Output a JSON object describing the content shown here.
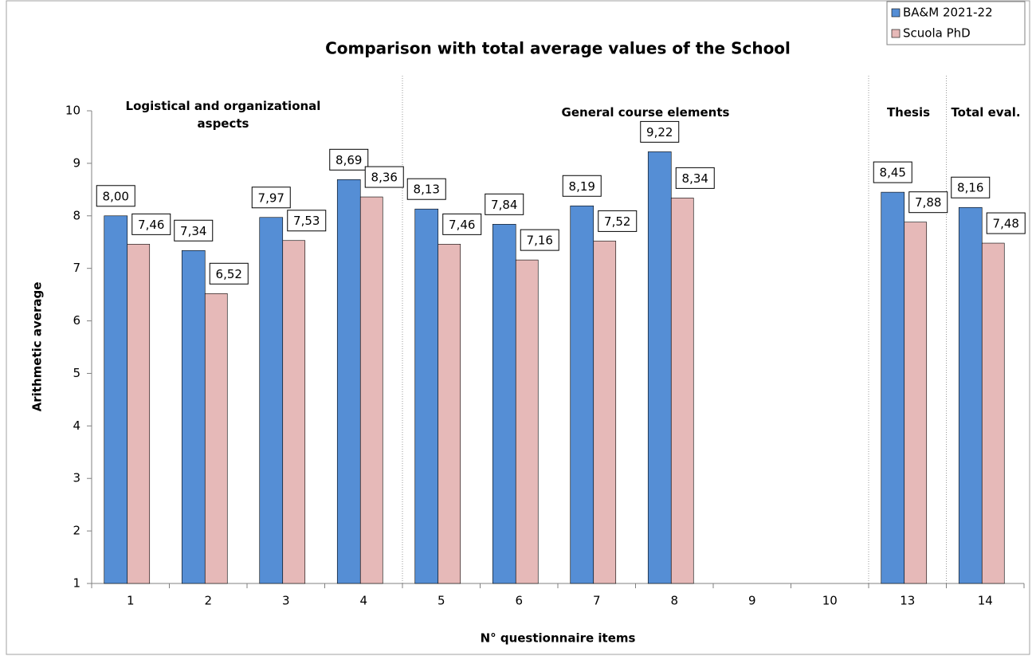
{
  "chart_data": {
    "type": "bar",
    "title": "Comparison with total average values of the School",
    "xlabel": "N° questionnaire items",
    "ylabel": "Arithmetic average",
    "categories": [
      "1",
      "2",
      "3",
      "4",
      "5",
      "6",
      "7",
      "8",
      "9",
      "10",
      "13",
      "14"
    ],
    "series": [
      {
        "name": "BA&M 2021-22",
        "color": "#558ed5",
        "values": [
          8.0,
          7.34,
          7.97,
          8.69,
          8.13,
          7.84,
          8.19,
          9.22,
          null,
          null,
          8.45,
          8.16
        ],
        "value_labels": [
          "8,00",
          "7,34",
          "7,97",
          "8,69",
          "8,13",
          "7,84",
          "8,19",
          "9,22",
          null,
          null,
          "8,45",
          "8,16"
        ]
      },
      {
        "name": "Scuola PhD",
        "color": "#e6b9b8",
        "values": [
          7.46,
          6.52,
          7.53,
          8.36,
          7.46,
          7.16,
          7.52,
          8.34,
          null,
          null,
          7.88,
          7.48
        ],
        "value_labels": [
          "7,46",
          "6,52",
          "7,53",
          "8,36",
          "7,46",
          "7,16",
          "7,52",
          "8,34",
          null,
          null,
          "7,88",
          "7,48"
        ]
      }
    ],
    "ylim": [
      1,
      10
    ],
    "yticks": [
      1,
      2,
      3,
      4,
      5,
      6,
      7,
      8,
      9,
      10
    ],
    "legend": "top-right",
    "annotations": [
      "Logistical and organizational aspects",
      "General course elements",
      "Thesis",
      "Total eval."
    ]
  }
}
